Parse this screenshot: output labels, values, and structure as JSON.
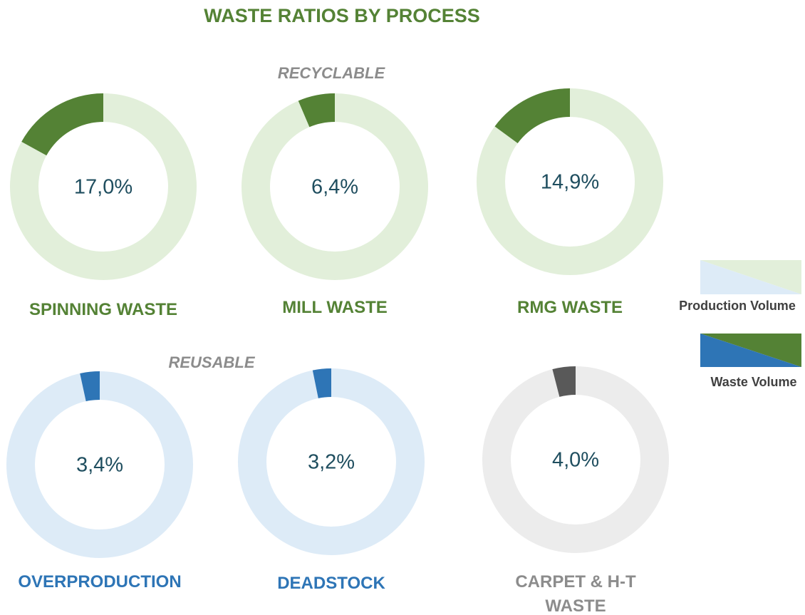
{
  "title": "WASTE RATIOS BY PROCESS",
  "groups": [
    "RECYCLABLE",
    "REUSABLE"
  ],
  "legend": [
    "Production Volume",
    "Waste Volume"
  ],
  "chart_data": [
    {
      "type": "donut",
      "title": "SPINNING WASTE",
      "values": [
        17.0
      ],
      "value_labels": [
        "17,0%"
      ],
      "color": "#548235",
      "track_color": "#e2efda",
      "title_color": "#548235"
    },
    {
      "type": "donut",
      "title": "MILL WASTE",
      "values": [
        6.4
      ],
      "value_labels": [
        "6,4%"
      ],
      "color": "#548235",
      "track_color": "#e2efda",
      "title_color": "#548235"
    },
    {
      "type": "donut",
      "title": "RMG WASTE",
      "values": [
        14.9
      ],
      "value_labels": [
        "14,9%"
      ],
      "color": "#548235",
      "track_color": "#e2efda",
      "title_color": "#548235"
    },
    {
      "type": "donut",
      "title": "OVERPRODUCTION",
      "values": [
        3.4
      ],
      "value_labels": [
        "3,4%"
      ],
      "color": "#2e75b6",
      "track_color": "#ddebf7",
      "title_color": "#2e75b6"
    },
    {
      "type": "donut",
      "title": "DEADSTOCK",
      "values": [
        3.2
      ],
      "value_labels": [
        "3,2%"
      ],
      "color": "#2e75b6",
      "track_color": "#ddebf7",
      "title_color": "#2e75b6"
    },
    {
      "type": "donut",
      "title": "CARPET & H-T WASTE",
      "values": [
        4.0
      ],
      "value_labels": [
        "4,0%"
      ],
      "color": "#595959",
      "track_color": "#ececec",
      "title_color": "#8c8c8c"
    }
  ]
}
